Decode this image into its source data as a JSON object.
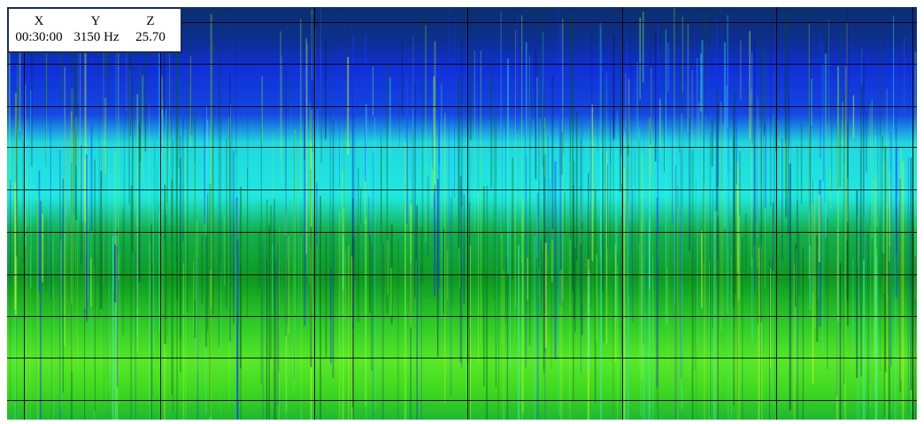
{
  "readout": {
    "headers": [
      "X",
      "Y",
      "Z"
    ],
    "values": [
      "00:30:00",
      "3150 Hz",
      "25.70"
    ]
  }
}
